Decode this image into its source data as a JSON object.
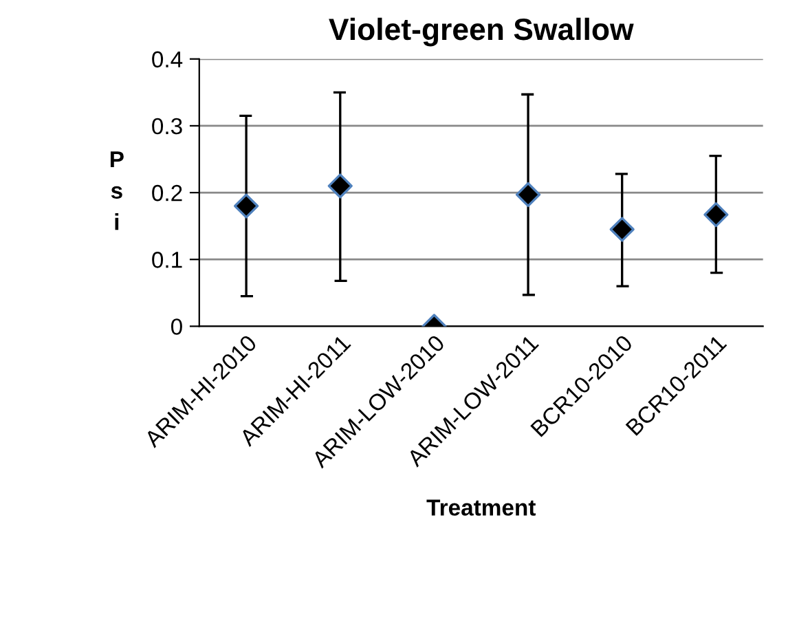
{
  "chart_data": {
    "type": "scatter",
    "title": "Violet-green Swallow",
    "xlabel": "Treatment",
    "ylabel": "Psi",
    "categories": [
      "ARIM-HI-2010",
      "ARIM-HI-2011",
      "ARIM-LOW-2010",
      "ARIM-LOW-2011",
      "BCR10-2010",
      "BCR10-2011"
    ],
    "series": [
      {
        "color": "#000000",
        "values": [
          0.18,
          0.21,
          0.0,
          0.197,
          0.145,
          0.167
        ],
        "errors": [
          [
            0.045,
            0.315
          ],
          [
            0.068,
            0.35
          ],
          null,
          [
            0.047,
            0.347
          ],
          [
            0.06,
            0.228
          ],
          [
            0.08,
            0.255
          ]
        ]
      }
    ],
    "ylim": [
      0,
      0.4
    ],
    "yticks": [
      0,
      0.1,
      0.2,
      0.3,
      0.4
    ],
    "grid": "y",
    "marker": "diamond",
    "legend": false
  }
}
